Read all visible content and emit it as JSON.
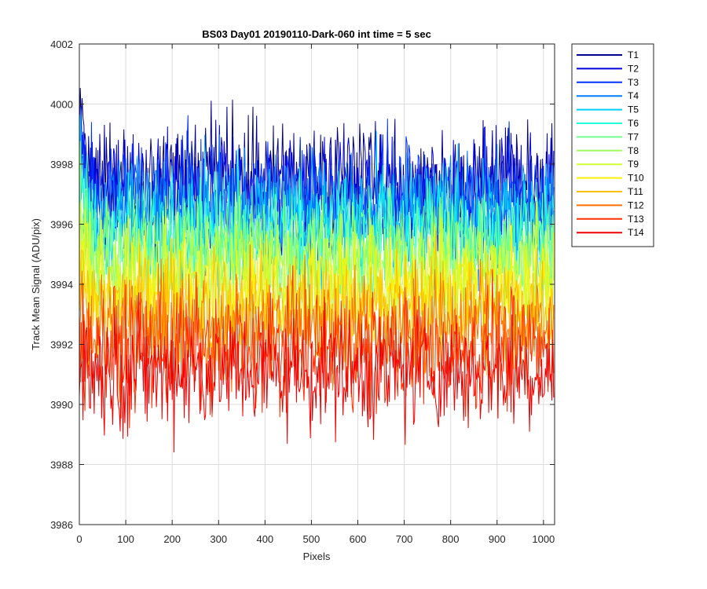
{
  "chart_data": {
    "type": "line",
    "title": "BS03 Day01 20190110-Dark-060 int time = 5 sec",
    "xlabel": "Pixels",
    "ylabel": "Track Mean Signal (ADU/pix)",
    "xlim": [
      0,
      1024
    ],
    "ylim": [
      3986,
      4002
    ],
    "xticks": [
      0,
      100,
      200,
      300,
      400,
      500,
      600,
      700,
      800,
      900,
      1000
    ],
    "yticks": [
      3986,
      3988,
      3990,
      3992,
      3994,
      3996,
      3998,
      4000,
      4002
    ],
    "grid": true,
    "legend_position": "outside-top-right",
    "series": [
      {
        "name": "T1",
        "color": "#00008f",
        "mean": 3997.4,
        "spread": 1.0,
        "start_offset": 2.2
      },
      {
        "name": "T2",
        "color": "#0000df",
        "mean": 3997.1,
        "spread": 1.0,
        "start_offset": 2.0
      },
      {
        "name": "T3",
        "color": "#0030ff",
        "mean": 3996.8,
        "spread": 1.0,
        "start_offset": 1.9
      },
      {
        "name": "T4",
        "color": "#007fff",
        "mean": 3996.5,
        "spread": 1.0,
        "start_offset": 1.8
      },
      {
        "name": "T5",
        "color": "#00cfff",
        "mean": 3996.1,
        "spread": 1.0,
        "start_offset": 1.7
      },
      {
        "name": "T6",
        "color": "#20ffdf",
        "mean": 3995.7,
        "spread": 1.0,
        "start_offset": 1.6
      },
      {
        "name": "T7",
        "color": "#70ff8f",
        "mean": 3995.3,
        "spread": 1.0,
        "start_offset": 1.5
      },
      {
        "name": "T8",
        "color": "#9fff60",
        "mean": 3994.8,
        "spread": 1.0,
        "start_offset": 1.4
      },
      {
        "name": "T9",
        "color": "#cfff30",
        "mean": 3994.3,
        "spread": 1.0,
        "start_offset": 1.3
      },
      {
        "name": "T10",
        "color": "#ffef00",
        "mean": 3993.8,
        "spread": 1.0,
        "start_offset": 1.2
      },
      {
        "name": "T11",
        "color": "#ffbf00",
        "mean": 3993.2,
        "spread": 1.0,
        "start_offset": 1.1
      },
      {
        "name": "T12",
        "color": "#ff7000",
        "mean": 3992.5,
        "spread": 1.0,
        "start_offset": 1.0
      },
      {
        "name": "T13",
        "color": "#ff3000",
        "mean": 3991.8,
        "spread": 1.0,
        "start_offset": 0.9
      },
      {
        "name": "T14",
        "color": "#ef0000",
        "mean": 3991.1,
        "spread": 1.0,
        "start_offset": 0.8
      }
    ]
  }
}
